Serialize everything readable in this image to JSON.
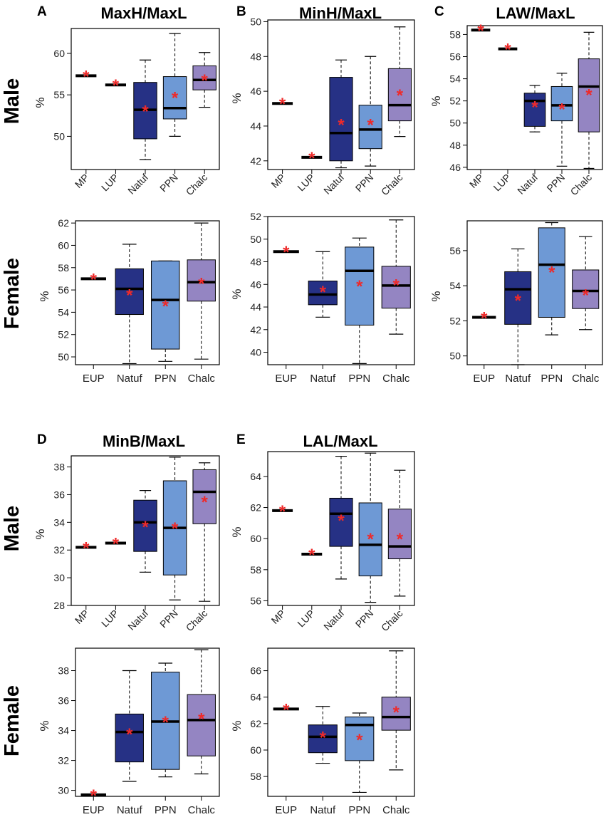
{
  "figure": {
    "y_axis_label": "%",
    "row_labels": {
      "male": "Male",
      "female": "Female"
    },
    "colors": {
      "MP": "#ffffff",
      "LUP": "#ffffff",
      "EUP": "#ffffff",
      "Natuf": "#263185",
      "PPN": "#6e99d5",
      "Chalc": "#9485c2",
      "median": "#000000",
      "mean_marker": "#ee2a2a"
    },
    "mean_marker_symbol": "*"
  },
  "chart_data": [
    {
      "type": "boxplot",
      "panel": "A",
      "title": "MaxH/MaxL",
      "sex": "Male",
      "ylabel": "%",
      "ylim": [
        46,
        63
      ],
      "yticks": [
        50,
        55,
        60
      ],
      "categories": [
        "MP",
        "LUP",
        "Natuf",
        "PPN",
        "Chalc"
      ],
      "boxes": [
        {
          "group": "MP",
          "min": 57.3,
          "q1": 57.3,
          "median": 57.3,
          "q3": 57.3,
          "max": 57.3,
          "mean": 57.3
        },
        {
          "group": "LUP",
          "min": 56.2,
          "q1": 56.2,
          "median": 56.2,
          "q3": 56.2,
          "max": 56.2,
          "mean": 56.2
        },
        {
          "group": "Natuf",
          "min": 47.2,
          "q1": 49.7,
          "median": 53.2,
          "q3": 56.5,
          "max": 59.2,
          "mean": 53.1
        },
        {
          "group": "PPN",
          "min": 50.0,
          "q1": 52.1,
          "median": 53.4,
          "q3": 57.2,
          "max": 62.4,
          "mean": 54.7
        },
        {
          "group": "Chalc",
          "min": 53.5,
          "q1": 55.6,
          "median": 56.8,
          "q3": 58.5,
          "max": 60.1,
          "mean": 56.8
        }
      ]
    },
    {
      "type": "boxplot",
      "panel": "B",
      "title": "MinH/MaxL",
      "sex": "Male",
      "ylabel": "%",
      "ylim": [
        41.5,
        50.1
      ],
      "yticks": [
        42,
        44,
        46,
        48,
        50
      ],
      "categories": [
        "MP",
        "LUP",
        "Natuf",
        "PPN",
        "Chalc"
      ],
      "boxes": [
        {
          "group": "MP",
          "min": 45.3,
          "q1": 45.3,
          "median": 45.3,
          "q3": 45.3,
          "max": 45.3,
          "mean": 45.3
        },
        {
          "group": "LUP",
          "min": 42.2,
          "q1": 42.2,
          "median": 42.2,
          "q3": 42.2,
          "max": 42.2,
          "mean": 42.2
        },
        {
          "group": "Natuf",
          "min": 41.6,
          "q1": 42.0,
          "median": 43.6,
          "q3": 46.8,
          "max": 47.8,
          "mean": 44.1
        },
        {
          "group": "PPN",
          "min": 41.7,
          "q1": 42.7,
          "median": 43.8,
          "q3": 45.2,
          "max": 48.0,
          "mean": 44.1
        },
        {
          "group": "Chalc",
          "min": 43.4,
          "q1": 44.3,
          "median": 45.2,
          "q3": 47.3,
          "max": 49.7,
          "mean": 45.8
        }
      ]
    },
    {
      "type": "boxplot",
      "panel": "C",
      "title": "LAW/MaxL",
      "sex": "Male",
      "ylabel": "%",
      "ylim": [
        45.8,
        58.8
      ],
      "yticks": [
        46,
        48,
        50,
        52,
        54,
        56,
        58
      ],
      "categories": [
        "MP",
        "LUP",
        "Natuf",
        "PPN",
        "Chalc"
      ],
      "boxes": [
        {
          "group": "MP",
          "min": 58.4,
          "q1": 58.4,
          "median": 58.4,
          "q3": 58.4,
          "max": 58.4,
          "mean": 58.4
        },
        {
          "group": "LUP",
          "min": 56.7,
          "q1": 56.7,
          "median": 56.7,
          "q3": 56.7,
          "max": 56.7,
          "mean": 56.7
        },
        {
          "group": "Natuf",
          "min": 49.2,
          "q1": 49.7,
          "median": 52.0,
          "q3": 52.7,
          "max": 53.4,
          "mean": 51.5
        },
        {
          "group": "PPN",
          "min": 46.1,
          "q1": 50.2,
          "median": 51.6,
          "q3": 53.3,
          "max": 54.5,
          "mean": 51.3
        },
        {
          "group": "Chalc",
          "min": 45.9,
          "q1": 49.2,
          "median": 53.3,
          "q3": 55.8,
          "max": 58.2,
          "mean": 52.6
        }
      ]
    },
    {
      "type": "boxplot",
      "panel": "A",
      "title": "MaxH/MaxL",
      "sex": "Female",
      "ylabel": "%",
      "ylim": [
        49.3,
        62.2
      ],
      "yticks": [
        50,
        52,
        54,
        56,
        58,
        60,
        62
      ],
      "categories": [
        "EUP",
        "Natuf",
        "PPN",
        "Chalc"
      ],
      "boxes": [
        {
          "group": "EUP",
          "min": 57.0,
          "q1": 57.0,
          "median": 57.0,
          "q3": 57.0,
          "max": 57.0,
          "mean": 57.0
        },
        {
          "group": "Natuf",
          "min": 49.4,
          "q1": 53.8,
          "median": 56.1,
          "q3": 57.9,
          "max": 60.1,
          "mean": 55.6
        },
        {
          "group": "PPN",
          "min": 49.6,
          "q1": 50.7,
          "median": 55.1,
          "q3": 58.6,
          "max": 58.6,
          "mean": 54.6
        },
        {
          "group": "Chalc",
          "min": 49.8,
          "q1": 55.0,
          "median": 56.7,
          "q3": 58.7,
          "max": 62.0,
          "mean": 56.6
        }
      ]
    },
    {
      "type": "boxplot",
      "panel": "B",
      "title": "MinH/MaxL",
      "sex": "Female",
      "ylabel": "%",
      "ylim": [
        38.9,
        52.0
      ],
      "yticks": [
        40,
        42,
        44,
        46,
        48,
        50,
        52
      ],
      "categories": [
        "EUP",
        "Natuf",
        "PPN",
        "Chalc"
      ],
      "boxes": [
        {
          "group": "EUP",
          "min": 48.9,
          "q1": 48.9,
          "median": 48.9,
          "q3": 48.9,
          "max": 48.9,
          "mean": 48.9
        },
        {
          "group": "Natuf",
          "min": 43.1,
          "q1": 44.2,
          "median": 45.1,
          "q3": 46.3,
          "max": 48.9,
          "mean": 45.4
        },
        {
          "group": "PPN",
          "min": 39.0,
          "q1": 42.4,
          "median": 47.2,
          "q3": 49.3,
          "max": 50.1,
          "mean": 45.9
        },
        {
          "group": "Chalc",
          "min": 41.6,
          "q1": 43.9,
          "median": 45.9,
          "q3": 47.6,
          "max": 51.7,
          "mean": 46.0
        }
      ]
    },
    {
      "type": "boxplot",
      "panel": "C",
      "title": "LAW/MaxL",
      "sex": "Female",
      "ylabel": "%",
      "ylim": [
        49.5,
        57.7
      ],
      "yticks": [
        50,
        52,
        54,
        56
      ],
      "categories": [
        "EUP",
        "Natuf",
        "PPN",
        "Chalc"
      ],
      "boxes": [
        {
          "group": "EUP",
          "min": 52.2,
          "q1": 52.2,
          "median": 52.2,
          "q3": 52.2,
          "max": 52.2,
          "mean": 52.2
        },
        {
          "group": "Natuf",
          "min": 49.5,
          "q1": 51.8,
          "median": 53.8,
          "q3": 54.8,
          "max": 56.1,
          "mean": 53.2
        },
        {
          "group": "PPN",
          "min": 51.2,
          "q1": 52.2,
          "median": 55.2,
          "q3": 57.3,
          "max": 57.6,
          "mean": 54.8
        },
        {
          "group": "Chalc",
          "min": 51.5,
          "q1": 52.7,
          "median": 53.7,
          "q3": 54.9,
          "max": 56.8,
          "mean": 53.5
        }
      ]
    },
    {
      "type": "boxplot",
      "panel": "D",
      "title": "MinB/MaxL",
      "sex": "Male",
      "ylabel": "%",
      "ylim": [
        28.0,
        38.8
      ],
      "yticks": [
        28,
        30,
        32,
        34,
        36,
        38
      ],
      "categories": [
        "MP",
        "LUP",
        "Natuf",
        "PPN",
        "Chalc"
      ],
      "boxes": [
        {
          "group": "MP",
          "min": 32.2,
          "q1": 32.2,
          "median": 32.2,
          "q3": 32.2,
          "max": 32.2,
          "mean": 32.2
        },
        {
          "group": "LUP",
          "min": 32.5,
          "q1": 32.5,
          "median": 32.5,
          "q3": 32.5,
          "max": 32.5,
          "mean": 32.5
        },
        {
          "group": "Natuf",
          "min": 30.4,
          "q1": 31.9,
          "median": 34.0,
          "q3": 35.6,
          "max": 36.3,
          "mean": 33.7
        },
        {
          "group": "PPN",
          "min": 28.4,
          "q1": 30.2,
          "median": 33.6,
          "q3": 37.0,
          "max": 38.7,
          "mean": 33.6
        },
        {
          "group": "Chalc",
          "min": 28.3,
          "q1": 33.9,
          "median": 36.2,
          "q3": 37.8,
          "max": 38.3,
          "mean": 35.5
        }
      ]
    },
    {
      "type": "boxplot",
      "panel": "E",
      "title": "LAL/MaxL",
      "sex": "Male",
      "ylabel": "%",
      "ylim": [
        55.7,
        65.6
      ],
      "yticks": [
        56,
        58,
        60,
        62,
        64
      ],
      "categories": [
        "MP",
        "LUP",
        "Natuf",
        "PPN",
        "Chalc"
      ],
      "boxes": [
        {
          "group": "MP",
          "min": 61.8,
          "q1": 61.8,
          "median": 61.8,
          "q3": 61.8,
          "max": 61.8,
          "mean": 61.8
        },
        {
          "group": "LUP",
          "min": 59.0,
          "q1": 59.0,
          "median": 59.0,
          "q3": 59.0,
          "max": 59.0,
          "mean": 59.0
        },
        {
          "group": "Natuf",
          "min": 57.4,
          "q1": 59.5,
          "median": 61.6,
          "q3": 62.6,
          "max": 65.3,
          "mean": 61.2
        },
        {
          "group": "PPN",
          "min": 55.9,
          "q1": 57.6,
          "median": 59.6,
          "q3": 62.3,
          "max": 65.5,
          "mean": 60.0
        },
        {
          "group": "Chalc",
          "min": 56.3,
          "q1": 58.7,
          "median": 59.5,
          "q3": 61.9,
          "max": 64.4,
          "mean": 60.0
        }
      ]
    },
    {
      "type": "boxplot",
      "panel": "D",
      "title": "MinB/MaxL",
      "sex": "Female",
      "ylabel": "%",
      "ylim": [
        29.6,
        39.5
      ],
      "yticks": [
        30,
        32,
        34,
        36,
        38
      ],
      "categories": [
        "EUP",
        "Natuf",
        "PPN",
        "Chalc"
      ],
      "boxes": [
        {
          "group": "EUP",
          "min": 29.7,
          "q1": 29.7,
          "median": 29.7,
          "q3": 29.7,
          "max": 29.7,
          "mean": 29.7
        },
        {
          "group": "Natuf",
          "min": 30.6,
          "q1": 31.9,
          "median": 33.9,
          "q3": 35.1,
          "max": 38.0,
          "mean": 33.8
        },
        {
          "group": "PPN",
          "min": 30.9,
          "q1": 31.4,
          "median": 34.6,
          "q3": 37.9,
          "max": 38.5,
          "mean": 34.6
        },
        {
          "group": "Chalc",
          "min": 31.1,
          "q1": 32.3,
          "median": 34.7,
          "q3": 36.4,
          "max": 39.4,
          "mean": 34.8
        }
      ]
    },
    {
      "type": "boxplot",
      "panel": "E",
      "title": "LAL/MaxL",
      "sex": "Female",
      "ylabel": "%",
      "ylim": [
        56.5,
        67.7
      ],
      "yticks": [
        58,
        60,
        62,
        64,
        66
      ],
      "categories": [
        "EUP",
        "Natuf",
        "PPN",
        "Chalc"
      ],
      "boxes": [
        {
          "group": "EUP",
          "min": 63.1,
          "q1": 63.1,
          "median": 63.1,
          "q3": 63.1,
          "max": 63.1,
          "mean": 63.1
        },
        {
          "group": "Natuf",
          "min": 59.0,
          "q1": 59.8,
          "median": 61.0,
          "q3": 61.9,
          "max": 63.3,
          "mean": 61.0
        },
        {
          "group": "PPN",
          "min": 56.8,
          "q1": 59.2,
          "median": 61.9,
          "q3": 62.5,
          "max": 62.8,
          "mean": 60.8
        },
        {
          "group": "Chalc",
          "min": 58.5,
          "q1": 61.5,
          "median": 62.5,
          "q3": 64.0,
          "max": 67.5,
          "mean": 62.9
        }
      ]
    }
  ]
}
